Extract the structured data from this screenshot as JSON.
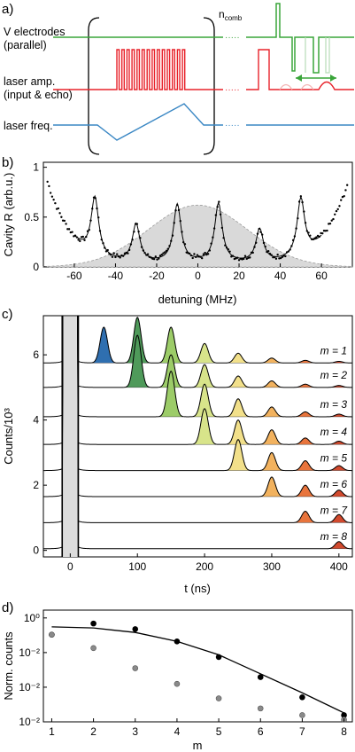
{
  "panel_a": {
    "letter": "a)",
    "labels": {
      "v_line1": "V electrodes",
      "v_line2": "(parallel)",
      "amp_line1": "laser amp.",
      "amp_line2": "(input & echo)",
      "freq": "laser freq.",
      "ncomb_main": "n",
      "ncomb_sub": "comb"
    },
    "colors": {
      "v": "#3aa53a",
      "amp": "#e8222a",
      "freq": "#3a87c4"
    }
  },
  "panel_b": {
    "letter": "b)",
    "ylabel": "Cavity R (arb.u.)",
    "xlabel": "detuning (MHz)",
    "xticks": [
      "-60",
      "-40",
      "-20",
      "0",
      "20",
      "40",
      "60"
    ],
    "yticks": [
      "0",
      "0.5",
      "1"
    ]
  },
  "panel_c": {
    "letter": "c)",
    "ylabel": "Counts/10³",
    "xlabel": "t (ns)",
    "xticks": [
      "0",
      "100",
      "200",
      "300",
      "400"
    ],
    "yticks": [
      "0",
      "2",
      "4",
      "6"
    ],
    "m_labels": [
      "m = 1",
      "m = 2",
      "m = 3",
      "m = 4",
      "m = 5",
      "m = 6",
      "m = 7",
      "m = 8"
    ],
    "peak_colors": [
      "#2f6fb0",
      "#4f9a5a",
      "#9ccc68",
      "#d8e48a",
      "#f2e08a",
      "#f2b25e",
      "#e8743c",
      "#d24a2e"
    ]
  },
  "panel_d": {
    "letter": "d)",
    "ylabel": "Norm. counts",
    "xlabel": "m",
    "xticks": [
      "1",
      "2",
      "3",
      "4",
      "5",
      "6",
      "7",
      "8"
    ],
    "yticks": [
      "10⁰",
      "10⁻²",
      "10⁻²",
      "10⁻²"
    ]
  },
  "chart_data": [
    {
      "type": "scatter",
      "panel": "b",
      "xlabel": "detuning (MHz)",
      "ylabel": "Cavity R (arb.u.)",
      "xlim": [
        -75,
        75
      ],
      "ylim": [
        0,
        1.05
      ],
      "peak_centers": [
        -50,
        -30,
        -10,
        10,
        30,
        50
      ],
      "peak_heights": [
        0.63,
        0.43,
        0.63,
        0.64,
        0.38,
        0.62
      ],
      "shaded_gaussian": {
        "center": 0,
        "amplitude": 0.62,
        "sigma": 24
      }
    },
    {
      "type": "line",
      "panel": "c",
      "xlabel": "t (ns)",
      "ylabel": "Counts/10³",
      "xlim": [
        -40,
        420
      ],
      "ylim": [
        -0.2,
        7.2
      ],
      "traces": [
        {
          "name": "m = 1",
          "baseline": 5.75,
          "peaks": [
            [
              50,
              1.1
            ],
            [
              100,
              1.4
            ],
            [
              150,
              1.1
            ],
            [
              200,
              0.6
            ],
            [
              250,
              0.3
            ],
            [
              300,
              0.15
            ],
            [
              350,
              0.08
            ],
            [
              400,
              0.05
            ]
          ]
        },
        {
          "name": "m = 2",
          "baseline": 5.0,
          "peaks": [
            [
              100,
              1.6
            ],
            [
              150,
              1.0
            ],
            [
              200,
              0.7
            ],
            [
              250,
              0.35
            ],
            [
              300,
              0.2
            ],
            [
              350,
              0.1
            ],
            [
              400,
              0.06
            ]
          ]
        },
        {
          "name": "m = 3",
          "baseline": 4.1,
          "peaks": [
            [
              150,
              1.4
            ],
            [
              200,
              1.0
            ],
            [
              250,
              0.55
            ],
            [
              300,
              0.3
            ],
            [
              350,
              0.15
            ],
            [
              400,
              0.08
            ]
          ]
        },
        {
          "name": "m = 4",
          "baseline": 3.25,
          "peaks": [
            [
              200,
              1.1
            ],
            [
              250,
              0.75
            ],
            [
              300,
              0.45
            ],
            [
              350,
              0.2
            ],
            [
              400,
              0.1
            ]
          ]
        },
        {
          "name": "m = 5",
          "baseline": 2.45,
          "peaks": [
            [
              250,
              0.95
            ],
            [
              300,
              0.55
            ],
            [
              350,
              0.3
            ],
            [
              400,
              0.15
            ]
          ]
        },
        {
          "name": "m = 6",
          "baseline": 1.65,
          "peaks": [
            [
              300,
              0.6
            ],
            [
              350,
              0.35
            ],
            [
              400,
              0.2
            ]
          ]
        },
        {
          "name": "m = 7",
          "baseline": 0.85,
          "peaks": [
            [
              350,
              0.35
            ],
            [
              400,
              0.25
            ]
          ]
        },
        {
          "name": "m = 8",
          "baseline": 0.05,
          "peaks": [
            [
              400,
              0.22
            ]
          ]
        }
      ]
    },
    {
      "type": "scatter",
      "panel": "d",
      "xlabel": "m",
      "ylabel": "Norm. counts",
      "xlim": [
        0.8,
        8.2
      ],
      "series": [
        {
          "values": [
            0.78,
            0.88,
            0.83,
            0.72,
            0.58,
            0.4,
            0.22,
            0.06
          ]
        },
        {
          "values": [
            0.78,
            0.66,
            0.48,
            0.34,
            0.21,
            0.12,
            0.06,
            0.02
          ]
        },
        {
          "values": [
            0.85,
            0.84,
            0.8,
            0.72,
            0.6,
            0.43,
            0.26,
            0.08
          ]
        }
      ]
    }
  ]
}
